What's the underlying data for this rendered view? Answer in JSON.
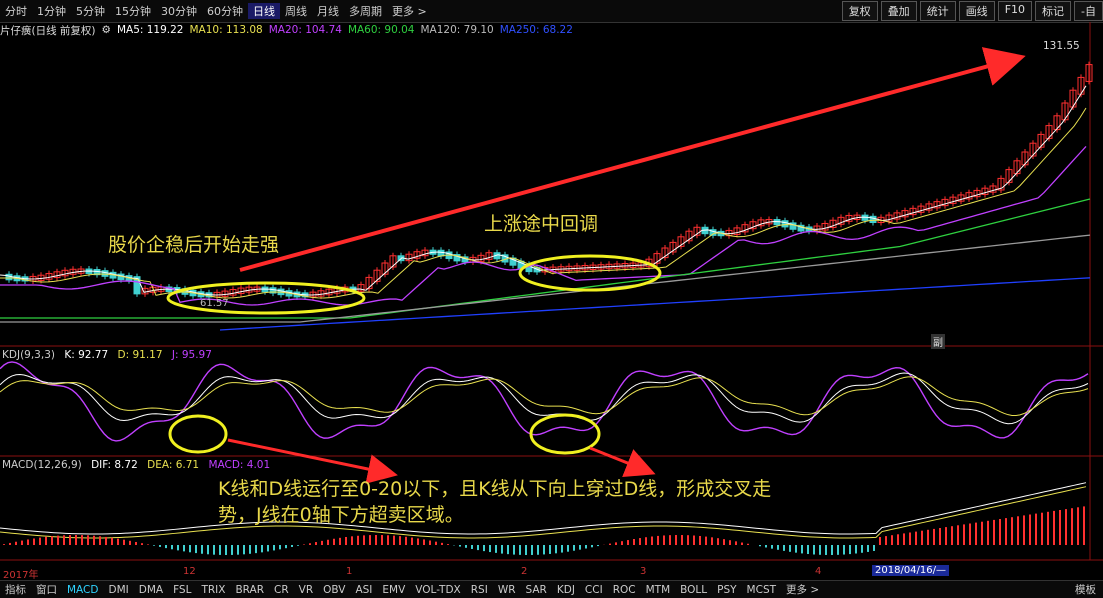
{
  "toolbar": {
    "periods": [
      "分时",
      "1分钟",
      "5分钟",
      "15分钟",
      "30分钟",
      "60分钟",
      "日线",
      "周线",
      "月线",
      "多周期",
      "更多 >"
    ],
    "active_period": "日线",
    "right_buttons": [
      "复权",
      "叠加",
      "统计",
      "画线",
      "F10",
      "标记",
      "-自"
    ]
  },
  "info": {
    "stock_name": "片仔癀(日线 前复权)",
    "ma5": "MA5: 119.22",
    "ma10": "MA10: 113.08",
    "ma20": "MA20: 104.74",
    "ma60": "MA60: 90.04",
    "ma120": "MA120: 79.10",
    "ma250": "MA250: 68.22"
  },
  "price": {
    "high_label": "131.55",
    "low_label": "61.57"
  },
  "kdj": {
    "label": "KDJ(9,3,3)",
    "k": "K: 92.77",
    "d": "D: 91.17",
    "j": "J: 95.97"
  },
  "macd": {
    "label": "MACD(12,26,9)",
    "dif": "DIF: 8.72",
    "dea": "DEA: 6.71",
    "macd": "MACD: 4.01"
  },
  "annotations": {
    "a1": "股价企稳后开始走强",
    "a2": "上涨途中回调",
    "a3_line1": "K线和D线运行至0-20以下，且K线从下向上穿过D线，形成交叉走",
    "a3_line2": "势，J线在0轴下方超卖区域。"
  },
  "axis": {
    "year_label": "2017年",
    "m12": "12",
    "m1": "1",
    "m2": "2",
    "m3": "3",
    "m4": "4",
    "date_badge": "2018/04/16/—",
    "fu_badge": "副"
  },
  "bottom_tabs": [
    "指标",
    "窗口",
    "MACD",
    "DMI",
    "DMA",
    "FSL",
    "TRIX",
    "BRAR",
    "CR",
    "VR",
    "OBV",
    "ASI",
    "EMV",
    "VOL-TDX",
    "RSI",
    "WR",
    "SAR",
    "KDJ",
    "CCI",
    "ROC",
    "MTM",
    "BOLL",
    "PSY",
    "MCST",
    "更多 >",
    "模板"
  ],
  "active_tab": "MACD",
  "colors": {
    "ma5": "#ffffff",
    "ma10": "#e8e050",
    "ma20": "#c040ff",
    "ma60": "#2fd040",
    "ma120": "#9a9a9a",
    "ma250": "#2040ff",
    "up": "#ff3030",
    "down": "#40d0d0",
    "ellipse": "#f0f020",
    "arrow": "#ff2a2a"
  }
}
